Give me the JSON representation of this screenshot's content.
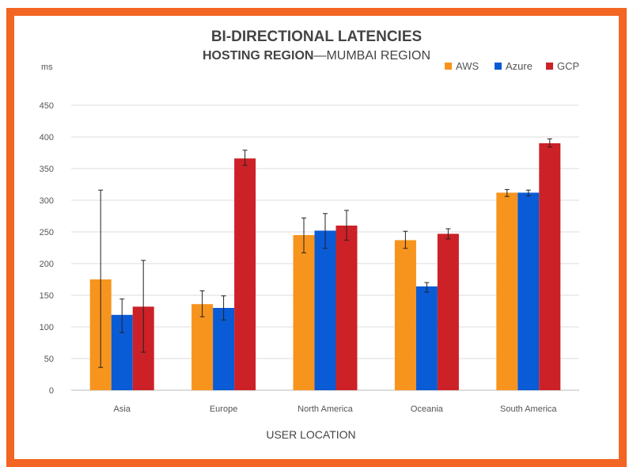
{
  "chart_data": {
    "type": "bar",
    "title": "BI-DIRECTIONAL LATENCIES",
    "subtitle_bold": "HOSTING REGION",
    "subtitle_rest": "—MUMBAI REGION",
    "ylabel": "ms",
    "xlabel": "USER LOCATION",
    "ylim": [
      0,
      450
    ],
    "yticks": [
      0,
      50,
      100,
      150,
      200,
      250,
      300,
      350,
      400,
      450
    ],
    "grid": true,
    "legend_placement": "top-right",
    "categories": [
      "Asia",
      "Europe",
      "North America",
      "Oceania",
      "South America"
    ],
    "series": [
      {
        "name": "AWS",
        "color": "#f7941d",
        "values": [
          175,
          136,
          245,
          237,
          312
        ],
        "err_low": [
          36,
          116,
          217,
          224,
          306
        ],
        "err_high": [
          316,
          157,
          272,
          251,
          317
        ]
      },
      {
        "name": "Azure",
        "color": "#0a5bd6",
        "values": [
          119,
          130,
          252,
          164,
          312
        ],
        "err_low": [
          91,
          111,
          224,
          155,
          307
        ],
        "err_high": [
          144,
          149,
          279,
          170,
          316
        ]
      },
      {
        "name": "GCP",
        "color": "#cc2127",
        "values": [
          132,
          366,
          260,
          247,
          390
        ],
        "err_low": [
          60,
          355,
          237,
          239,
          384
        ],
        "err_high": [
          205,
          379,
          284,
          255,
          397
        ]
      }
    ]
  },
  "colors": {
    "border": "#f26522"
  }
}
